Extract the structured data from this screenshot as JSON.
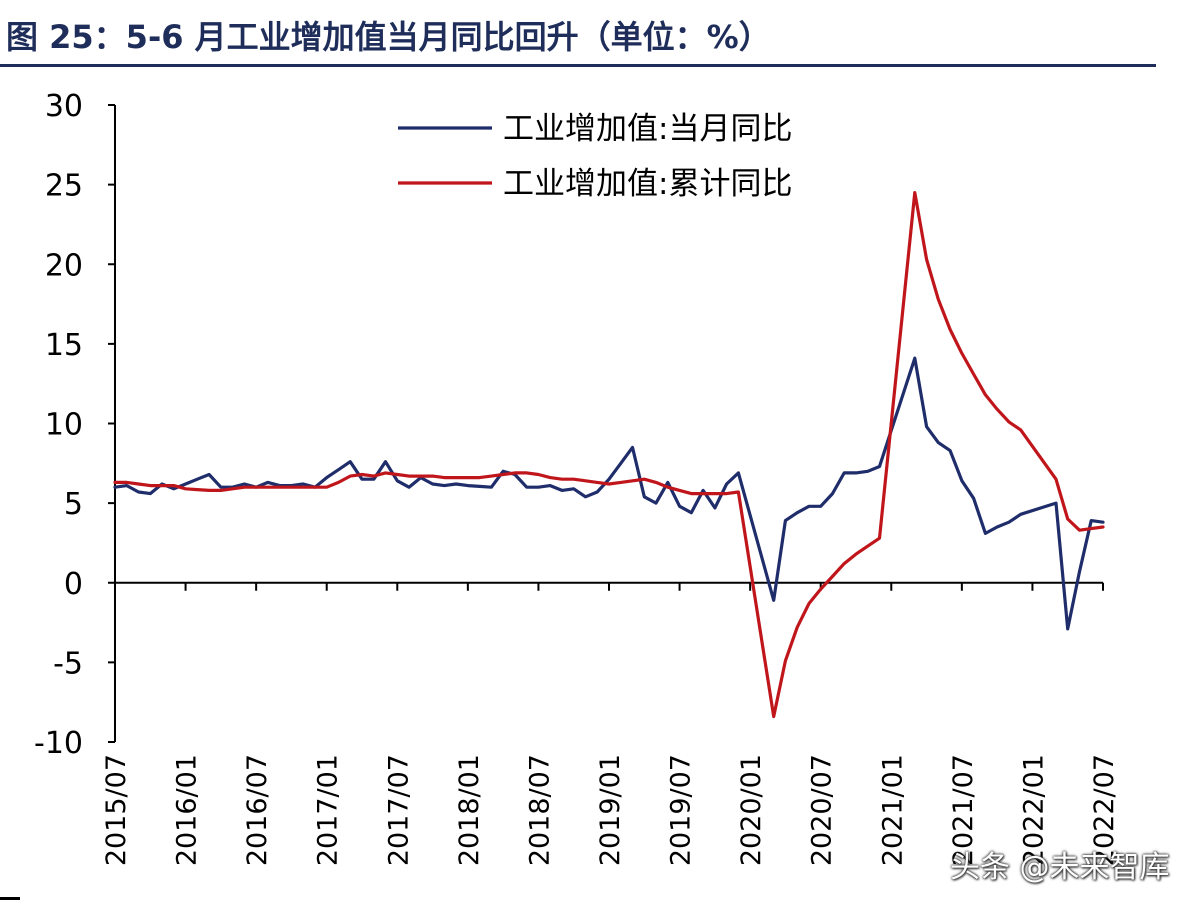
{
  "title": "图 25：5-6 月工业增加值当月同比回升（单位：%）",
  "watermark": "头条 @未来智库",
  "chart_data": {
    "type": "line",
    "title": "",
    "xlabel": "",
    "ylabel": "",
    "ylim": [
      -10,
      30
    ],
    "yticks": [
      30,
      25,
      20,
      15,
      10,
      5,
      0,
      -5,
      -10
    ],
    "x_tick_labels": [
      "2015/07",
      "2016/01",
      "2016/07",
      "2017/01",
      "2017/07",
      "2018/01",
      "2018/07",
      "2019/01",
      "2019/07",
      "2020/01",
      "2020/07",
      "2021/01",
      "2021/07",
      "2022/01",
      "2022/07"
    ],
    "legend_position": "top-right",
    "x": [
      "2015/07",
      "2015/08",
      "2015/09",
      "2015/10",
      "2015/11",
      "2015/12",
      "2016/01",
      "2016/02",
      "2016/03",
      "2016/04",
      "2016/05",
      "2016/06",
      "2016/07",
      "2016/08",
      "2016/09",
      "2016/10",
      "2016/11",
      "2016/12",
      "2017/01",
      "2017/02",
      "2017/03",
      "2017/04",
      "2017/05",
      "2017/06",
      "2017/07",
      "2017/08",
      "2017/09",
      "2017/10",
      "2017/11",
      "2017/12",
      "2018/01",
      "2018/02",
      "2018/03",
      "2018/04",
      "2018/05",
      "2018/06",
      "2018/07",
      "2018/08",
      "2018/09",
      "2018/10",
      "2018/11",
      "2018/12",
      "2019/01",
      "2019/02",
      "2019/03",
      "2019/04",
      "2019/05",
      "2019/06",
      "2019/07",
      "2019/08",
      "2019/09",
      "2019/10",
      "2019/11",
      "2019/12",
      "2020/01",
      "2020/02",
      "2020/03",
      "2020/04",
      "2020/05",
      "2020/06",
      "2020/07",
      "2020/08",
      "2020/09",
      "2020/10",
      "2020/11",
      "2020/12",
      "2021/01",
      "2021/02",
      "2021/03",
      "2021/04",
      "2021/05",
      "2021/06",
      "2021/07",
      "2021/08",
      "2021/09",
      "2021/10",
      "2021/11",
      "2021/12",
      "2022/01",
      "2022/02",
      "2022/03",
      "2022/04",
      "2022/05",
      "2022/06",
      "2022/07"
    ],
    "series": [
      {
        "name": "工业增加值:当月同比",
        "color": "#1f2d6b",
        "values": [
          6.0,
          6.1,
          5.7,
          5.6,
          6.2,
          5.9,
          6.2,
          6.5,
          6.8,
          6.0,
          6.0,
          6.2,
          6.0,
          6.3,
          6.1,
          6.1,
          6.2,
          6.0,
          6.6,
          7.1,
          7.6,
          6.5,
          6.5,
          7.6,
          6.4,
          6.0,
          6.6,
          6.2,
          6.1,
          6.2,
          6.1,
          6.05,
          6.0,
          7.0,
          6.8,
          6.0,
          6.0,
          6.1,
          5.8,
          5.9,
          5.4,
          5.7,
          6.5,
          7.5,
          8.5,
          5.4,
          5.0,
          6.3,
          4.8,
          4.4,
          5.8,
          4.7,
          6.2,
          6.9,
          null,
          null,
          -1.1,
          3.9,
          4.4,
          4.8,
          4.8,
          5.6,
          6.9,
          6.9,
          7.0,
          7.3,
          null,
          null,
          14.1,
          9.8,
          8.8,
          8.3,
          6.4,
          5.3,
          3.1,
          3.5,
          3.8,
          4.3,
          null,
          null,
          5.0,
          -2.9,
          0.7,
          3.9,
          3.8
        ]
      },
      {
        "name": "工业增加值:累计同比",
        "color": "#c0161b",
        "values": [
          6.3,
          6.3,
          6.2,
          6.1,
          6.1,
          6.1,
          5.9,
          5.85,
          5.8,
          5.8,
          5.9,
          6.0,
          6.0,
          6.0,
          6.0,
          6.0,
          6.0,
          6.0,
          6.0,
          6.3,
          6.7,
          6.8,
          6.7,
          6.9,
          6.8,
          6.7,
          6.7,
          6.7,
          6.6,
          6.6,
          6.6,
          6.6,
          6.7,
          6.8,
          6.9,
          6.9,
          6.8,
          6.6,
          6.5,
          6.5,
          6.4,
          6.3,
          6.2,
          6.3,
          6.4,
          6.5,
          6.3,
          6.0,
          5.8,
          5.6,
          5.6,
          5.6,
          5.6,
          5.7,
          null,
          null,
          -8.4,
          -4.9,
          -2.8,
          -1.3,
          -0.4,
          0.4,
          1.2,
          1.8,
          2.3,
          2.8,
          null,
          null,
          24.5,
          20.3,
          17.8,
          15.9,
          14.4,
          13.1,
          11.8,
          10.9,
          10.1,
          9.6,
          null,
          null,
          6.5,
          4.0,
          3.3,
          3.4,
          3.5
        ]
      }
    ]
  }
}
